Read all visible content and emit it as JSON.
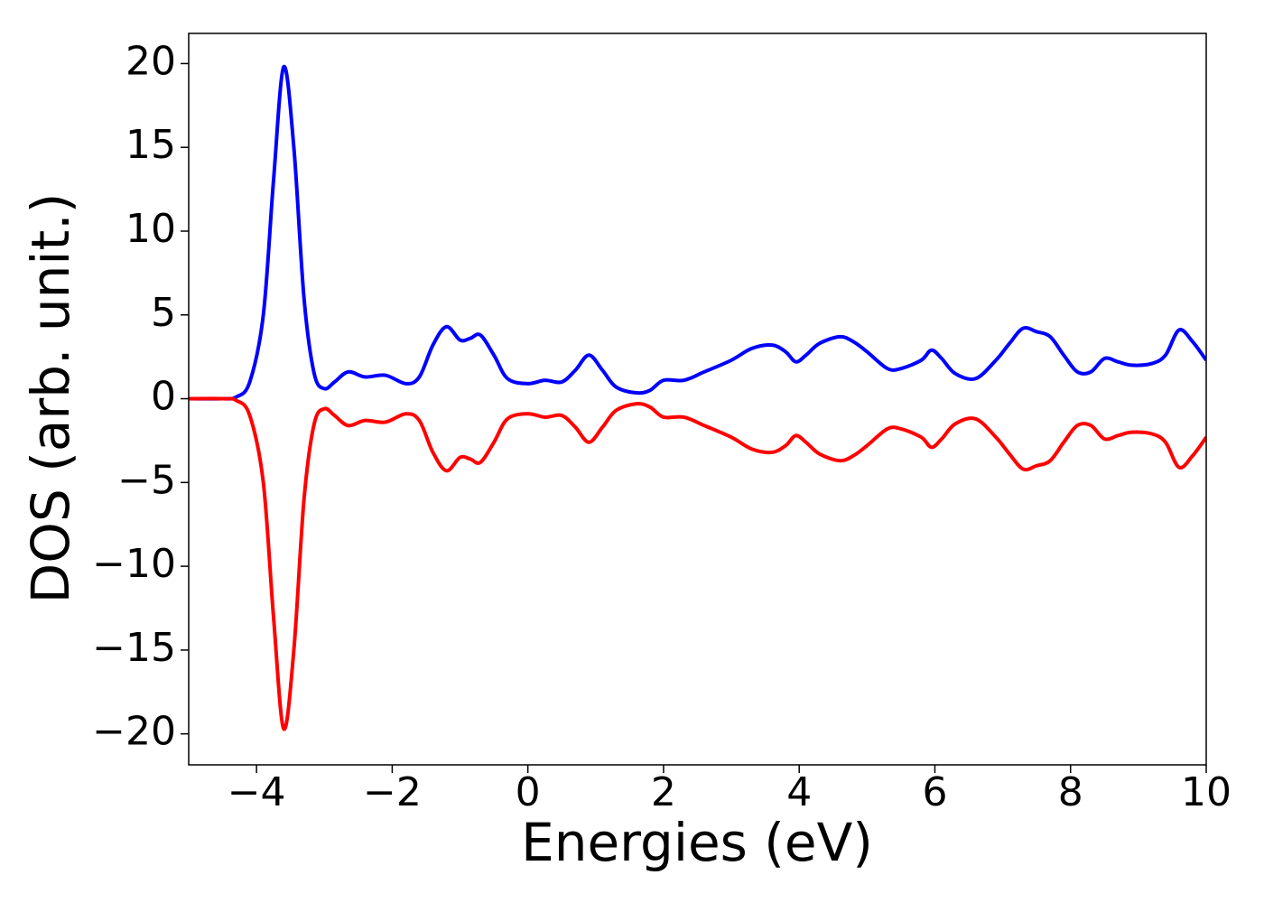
{
  "chart_data": {
    "type": "line",
    "x_label": "Energies (eV)",
    "y_label": "DOS (arb. unit.)",
    "x": [
      -5,
      -4.5,
      -4.3,
      -4.1,
      -3.9,
      -3.75,
      -3.6,
      -3.45,
      -3.3,
      -3.15,
      -3.0,
      -2.85,
      -2.65,
      -2.4,
      -2.1,
      -1.8,
      -1.6,
      -1.4,
      -1.2,
      -1.0,
      -0.85,
      -0.7,
      -0.5,
      -0.3,
      0,
      0.25,
      0.5,
      0.7,
      0.9,
      1.1,
      1.3,
      1.6,
      1.8,
      2.0,
      2.3,
      2.6,
      3.0,
      3.3,
      3.6,
      3.8,
      3.95,
      4.1,
      4.3,
      4.6,
      4.8,
      5.0,
      5.3,
      5.5,
      5.8,
      5.95,
      6.1,
      6.3,
      6.6,
      6.9,
      7.1,
      7.3,
      7.5,
      7.7,
      7.9,
      8.1,
      8.3,
      8.5,
      8.7,
      8.9,
      9.2,
      9.4,
      9.6,
      9.8,
      10
    ],
    "series": [
      {
        "color": "#0000ff",
        "values": [
          0,
          0,
          0.1,
          1,
          5,
          13,
          19.8,
          15,
          6,
          1.5,
          0.6,
          1.0,
          1.6,
          1.3,
          1.4,
          0.9,
          1.3,
          3.2,
          4.3,
          3.5,
          3.6,
          3.8,
          2.6,
          1.2,
          0.9,
          1.1,
          1.0,
          1.7,
          2.6,
          1.7,
          0.7,
          0.35,
          0.5,
          1.1,
          1.1,
          1.6,
          2.3,
          3.0,
          3.2,
          2.8,
          2.2,
          2.6,
          3.3,
          3.7,
          3.4,
          2.8,
          1.8,
          1.8,
          2.3,
          2.9,
          2.4,
          1.5,
          1.2,
          2.3,
          3.3,
          4.2,
          4.0,
          3.7,
          2.6,
          1.6,
          1.6,
          2.4,
          2.2,
          2.0,
          2.1,
          2.6,
          4.1,
          3.4,
          2.3
        ]
      },
      {
        "color": "#ff0000",
        "values": [
          0,
          0,
          -0.1,
          -1,
          -5,
          -13,
          -19.7,
          -15,
          -6,
          -1.5,
          -0.6,
          -1.0,
          -1.6,
          -1.3,
          -1.4,
          -0.9,
          -1.3,
          -3.2,
          -4.3,
          -3.5,
          -3.6,
          -3.8,
          -2.6,
          -1.2,
          -0.9,
          -1.1,
          -1.0,
          -1.7,
          -2.6,
          -1.7,
          -0.7,
          -0.3,
          -0.5,
          -1.1,
          -1.1,
          -1.6,
          -2.3,
          -3.0,
          -3.2,
          -2.8,
          -2.2,
          -2.6,
          -3.3,
          -3.7,
          -3.4,
          -2.8,
          -1.8,
          -1.8,
          -2.3,
          -2.9,
          -2.4,
          -1.5,
          -1.2,
          -2.3,
          -3.3,
          -4.2,
          -4.0,
          -3.7,
          -2.6,
          -1.6,
          -1.6,
          -2.4,
          -2.2,
          -2.0,
          -2.1,
          -2.6,
          -4.1,
          -3.4,
          -2.3
        ]
      }
    ],
    "xlim": [
      -5,
      10
    ],
    "ylim": [
      -21.85,
      21.8
    ],
    "xticks": [
      {
        "value": -4,
        "label": "−4"
      },
      {
        "value": -2,
        "label": "−2"
      },
      0,
      2,
      4,
      6,
      8,
      10
    ],
    "yticks": [
      {
        "value": -20,
        "label": "−20"
      },
      {
        "value": -15,
        "label": "−15"
      },
      {
        "value": -10,
        "label": "−10"
      },
      {
        "value": -5,
        "label": "−5"
      },
      0,
      5,
      10,
      15,
      20
    ],
    "grid": false
  }
}
